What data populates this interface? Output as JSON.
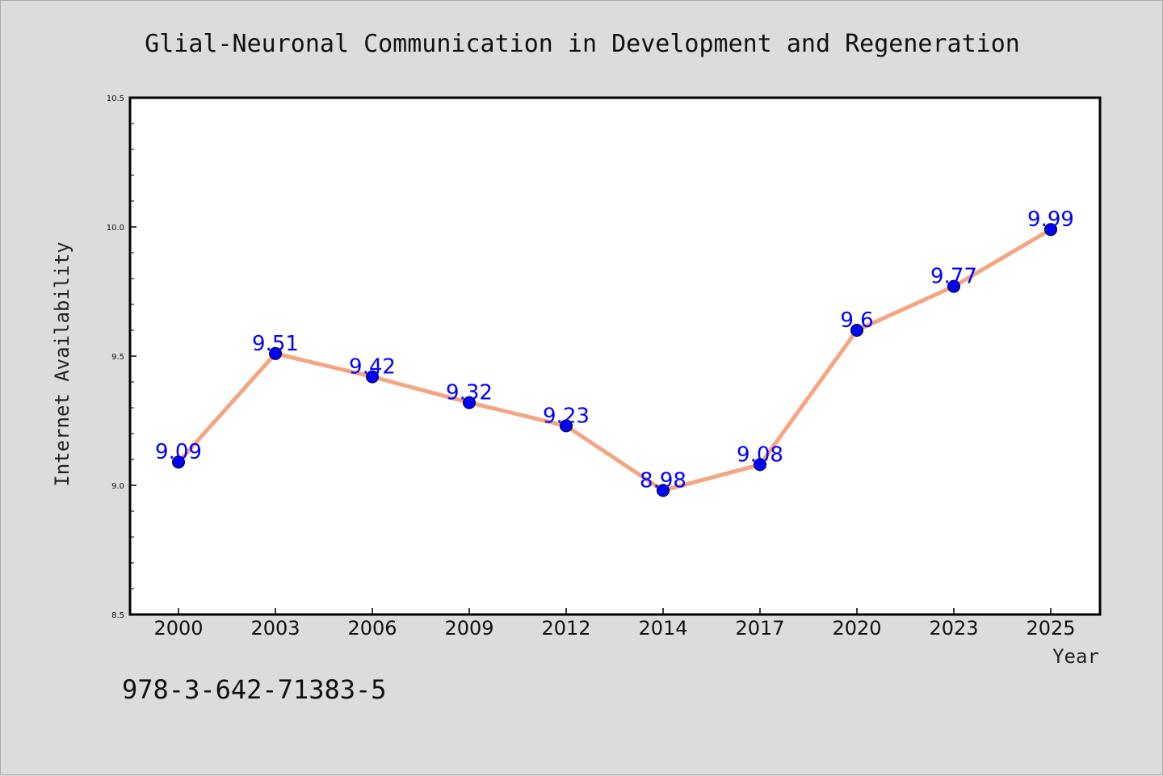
{
  "chart_data": {
    "type": "line",
    "title": "Glial-Neuronal Communication in Development and Regeneration",
    "xlabel": "Year",
    "ylabel": "Internet Availability",
    "categories": [
      "2000",
      "2003",
      "2006",
      "2009",
      "2012",
      "2014",
      "2017",
      "2020",
      "2023",
      "2025"
    ],
    "series": [
      {
        "values": [
          9.09,
          9.51,
          9.42,
          9.32,
          9.23,
          8.98,
          9.08,
          9.6,
          9.77,
          9.99
        ]
      }
    ],
    "data_labels": [
      "9.09",
      "9.51",
      "9.42",
      "9.32",
      "9.23",
      "8.98",
      "9.08",
      "9.6",
      "9.77",
      "9.99"
    ],
    "ylim": [
      8.5,
      10.5
    ],
    "yticks": [
      "8.5",
      "9.0",
      "9.5",
      "10.0",
      "10.5"
    ],
    "grid": false,
    "colors": {
      "line": "#f4a582",
      "marker": "#0000ff",
      "label": "#0000ff",
      "background": "#dcdcdc",
      "plot_background": "#ffffff"
    }
  },
  "footer": {
    "isbn": "978-3-642-71383-5"
  }
}
